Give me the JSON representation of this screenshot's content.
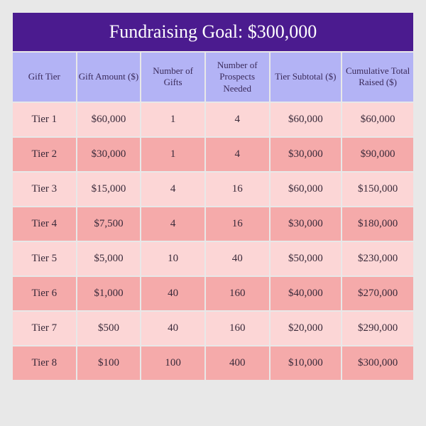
{
  "title": "Fundraising Goal: $300,000",
  "columns": [
    "Gift Tier",
    "Gift Amount ($)",
    "Number of Gifts",
    "Number of Prospects Needed",
    "Tier Subtotal ($)",
    "Cumulative Total Raised ($)"
  ],
  "rows": [
    {
      "tier": "Tier 1",
      "amount": "$60,000",
      "gifts": "1",
      "prospects": "4",
      "subtotal": "$60,000",
      "cumulative": "$60,000"
    },
    {
      "tier": "Tier 2",
      "amount": "$30,000",
      "gifts": "1",
      "prospects": "4",
      "subtotal": "$30,000",
      "cumulative": "$90,000"
    },
    {
      "tier": "Tier 3",
      "amount": "$15,000",
      "gifts": "4",
      "prospects": "16",
      "subtotal": "$60,000",
      "cumulative": "$150,000"
    },
    {
      "tier": "Tier 4",
      "amount": "$7,500",
      "gifts": "4",
      "prospects": "16",
      "subtotal": "$30,000",
      "cumulative": "$180,000"
    },
    {
      "tier": "Tier 5",
      "amount": "$5,000",
      "gifts": "10",
      "prospects": "40",
      "subtotal": "$50,000",
      "cumulative": "$230,000"
    },
    {
      "tier": "Tier 6",
      "amount": "$1,000",
      "gifts": "40",
      "prospects": "160",
      "subtotal": "$40,000",
      "cumulative": "$270,000"
    },
    {
      "tier": "Tier 7",
      "amount": "$500",
      "gifts": "40",
      "prospects": "160",
      "subtotal": "$20,000",
      "cumulative": "$290,000"
    },
    {
      "tier": "Tier 8",
      "amount": "$100",
      "gifts": "100",
      "prospects": "400",
      "subtotal": "$10,000",
      "cumulative": "$300,000"
    }
  ],
  "styling": {
    "title_bg": "#4b1b8f",
    "title_color": "#ffffff",
    "header_bg": "#b3b3f5",
    "header_color": "#3a2a5a",
    "row_light_bg": "#fcd6d6",
    "row_dark_bg": "#f5aaaa",
    "row_text_color": "#3a2a3a",
    "page_bg": "#e8e8e8",
    "title_fontsize": 26,
    "header_fontsize": 13,
    "cell_fontsize": 15,
    "border_spacing": 2,
    "column_widths_pct": [
      16,
      16,
      16,
      16,
      18,
      18
    ]
  }
}
